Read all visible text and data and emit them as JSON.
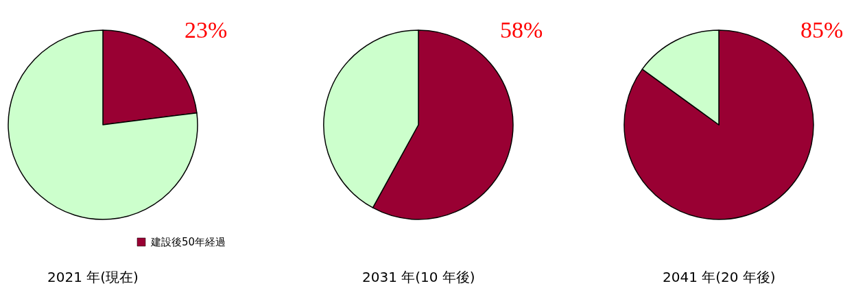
{
  "chart_data": [
    {
      "type": "pie",
      "title": "2021 年(現在)",
      "categories": [
        "建設後50年経過",
        null
      ],
      "values": [
        23,
        77
      ],
      "colors": [
        "#990033",
        "#ccffcc"
      ],
      "value_labels": [
        "23%",
        null
      ],
      "legend": "bottom right"
    },
    {
      "type": "pie",
      "title": "2031 年(10 年後)",
      "categories": [
        null,
        null
      ],
      "values": [
        58,
        42
      ],
      "colors": [
        "#990033",
        "#ccffcc"
      ],
      "value_labels": [
        "58%",
        null
      ]
    },
    {
      "type": "pie",
      "title": "2041 年(20 年後)",
      "categories": [
        null,
        null
      ],
      "values": [
        85,
        15
      ],
      "colors": [
        "#990033",
        "#ccffcc"
      ],
      "value_labels": [
        "85%",
        null
      ]
    }
  ]
}
